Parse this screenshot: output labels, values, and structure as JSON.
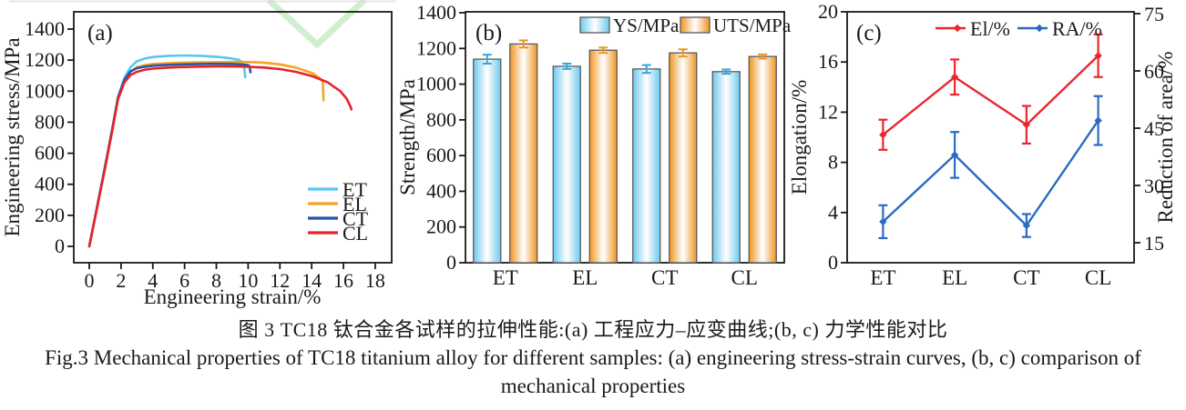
{
  "figure": {
    "caption_zh": "图 3  TC18 钛合金各试样的拉伸性能:(a) 工程应力–应变曲线;(b, c) 力学性能对比",
    "caption_en_line1": "Fig.3  Mechanical properties of TC18 titanium alloy for different samples: (a) engineering stress-strain curves, (b, c) comparison of",
    "caption_en_line2": "mechanical properties"
  },
  "colors": {
    "axis": "#1a1a1a",
    "watermark_green": "#c9ecc6",
    "page_edge_line": "#dcdcdc",
    "bar_border": "#5a5a5a"
  },
  "chart_data": [
    {
      "type": "line",
      "panel_label": "(a)",
      "xlabel": "Engineering strain/%",
      "ylabel": "Engineering stress/MPa",
      "xlim": [
        0,
        19
      ],
      "xticks": [
        0,
        2,
        4,
        6,
        8,
        10,
        12,
        14,
        16,
        18
      ],
      "ylim": [
        0,
        1400
      ],
      "yticks": [
        0,
        200,
        400,
        600,
        800,
        1000,
        1200,
        1400
      ],
      "legend_position": "lower right",
      "series": [
        {
          "name": "ET",
          "color": "#58c7f2",
          "points": [
            [
              0,
              0
            ],
            [
              0.5,
              260
            ],
            [
              1,
              520
            ],
            [
              1.5,
              790
            ],
            [
              1.8,
              960
            ],
            [
              2.2,
              1085
            ],
            [
              2.6,
              1155
            ],
            [
              3.0,
              1192
            ],
            [
              3.5,
              1210
            ],
            [
              4,
              1220
            ],
            [
              5,
              1228
            ],
            [
              6,
              1230
            ],
            [
              7,
              1228
            ],
            [
              8,
              1222
            ],
            [
              8.8,
              1213
            ],
            [
              9.4,
              1202
            ],
            [
              9.6,
              1190
            ],
            [
              9.75,
              1155
            ],
            [
              9.82,
              1090
            ]
          ]
        },
        {
          "name": "EL",
          "color": "#f7a423",
          "points": [
            [
              0,
              0
            ],
            [
              0.5,
              255
            ],
            [
              1,
              510
            ],
            [
              1.5,
              780
            ],
            [
              1.8,
              950
            ],
            [
              2.2,
              1065
            ],
            [
              2.6,
              1125
            ],
            [
              3.0,
              1155
            ],
            [
              3.5,
              1168
            ],
            [
              4,
              1175
            ],
            [
              5,
              1181
            ],
            [
              6,
              1184
            ],
            [
              7,
              1186
            ],
            [
              8,
              1187
            ],
            [
              9,
              1188
            ],
            [
              10,
              1188
            ],
            [
              11,
              1184
            ],
            [
              12,
              1173
            ],
            [
              13,
              1152
            ],
            [
              14,
              1118
            ],
            [
              14.5,
              1085
            ],
            [
              14.7,
              1060
            ],
            [
              14.75,
              940
            ]
          ]
        },
        {
          "name": "CT",
          "color": "#2158a8",
          "points": [
            [
              0,
              0
            ],
            [
              0.5,
              257
            ],
            [
              1,
              515
            ],
            [
              1.5,
              785
            ],
            [
              1.8,
              955
            ],
            [
              2.2,
              1070
            ],
            [
              2.6,
              1128
            ],
            [
              3.0,
              1148
            ],
            [
              3.5,
              1158
            ],
            [
              4,
              1164
            ],
            [
              5,
              1170
            ],
            [
              6,
              1173
            ],
            [
              7,
              1175
            ],
            [
              8,
              1176
            ],
            [
              9,
              1175
            ],
            [
              9.6,
              1172
            ],
            [
              10,
              1168
            ],
            [
              10.1,
              1160
            ],
            [
              10.15,
              1122
            ]
          ]
        },
        {
          "name": "CL",
          "color": "#e8232a",
          "points": [
            [
              0,
              0
            ],
            [
              0.5,
              252
            ],
            [
              1,
              505
            ],
            [
              1.5,
              775
            ],
            [
              1.8,
              945
            ],
            [
              2.2,
              1055
            ],
            [
              2.6,
              1105
            ],
            [
              3.0,
              1125
            ],
            [
              3.5,
              1138
            ],
            [
              4,
              1145
            ],
            [
              5,
              1152
            ],
            [
              6,
              1156
            ],
            [
              7,
              1158
            ],
            [
              8,
              1159
            ],
            [
              9,
              1159
            ],
            [
              10,
              1157
            ],
            [
              11,
              1152
            ],
            [
              12,
              1142
            ],
            [
              13,
              1125
            ],
            [
              14,
              1098
            ],
            [
              15,
              1058
            ],
            [
              15.8,
              1000
            ],
            [
              16.2,
              952
            ],
            [
              16.45,
              900
            ],
            [
              16.5,
              882
            ]
          ]
        }
      ]
    },
    {
      "type": "bar",
      "panel_label": "(b)",
      "ylabel": "Strength/MPa",
      "categories": [
        "ET",
        "EL",
        "CT",
        "CL"
      ],
      "ylim": [
        0,
        1400
      ],
      "yticks": [
        0,
        200,
        400,
        600,
        800,
        1000,
        1200,
        1400
      ],
      "legend_position": "top",
      "series": [
        {
          "name": "YS/MPa",
          "color": "#6cc9f0",
          "error_color": "#2ea7dc",
          "values": [
            1140,
            1100,
            1085,
            1070
          ],
          "errors": [
            25,
            15,
            22,
            12
          ]
        },
        {
          "name": "UTS/MPa",
          "color": "#f0941f",
          "error_color": "#f0941f",
          "values": [
            1225,
            1190,
            1175,
            1155
          ],
          "errors": [
            20,
            15,
            20,
            12
          ]
        }
      ]
    },
    {
      "type": "dual-line",
      "panel_label": "(c)",
      "ylabel_left": "Elongation/%",
      "ylabel_right": "Reduction of area/%",
      "categories": [
        "ET",
        "EL",
        "CT",
        "CL"
      ],
      "ylim_left": [
        0,
        20
      ],
      "yticks_left": [
        0,
        4,
        8,
        12,
        16,
        20
      ],
      "ylim_right": [
        9.8,
        75.2
      ],
      "yticks_right": [
        15,
        30,
        45,
        60,
        75
      ],
      "legend_position": "top",
      "series": [
        {
          "name": "El/%",
          "axis": "left",
          "color": "#e8282e",
          "values": [
            10.2,
            14.8,
            11.0,
            16.5
          ],
          "errors": [
            1.2,
            1.4,
            1.5,
            1.7
          ]
        },
        {
          "name": "RA/%",
          "axis": "right",
          "color": "#2a6bc0",
          "values": [
            20.5,
            38,
            19.5,
            47
          ],
          "errors": [
            4.3,
            6,
            3,
            6.4
          ]
        }
      ]
    }
  ]
}
